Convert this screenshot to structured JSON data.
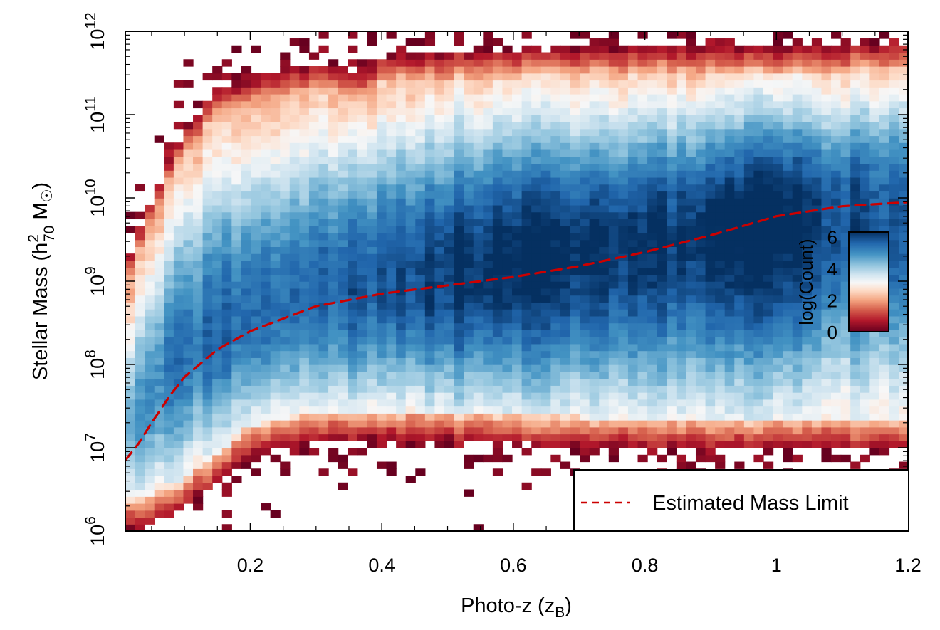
{
  "chart_data": {
    "type": "heatmap",
    "title": "",
    "xlabel": {
      "main": "Photo-z (z",
      "sub": "B",
      "end": ")"
    },
    "ylabel": {
      "pre": "Stellar Mass (h",
      "sup": "2",
      "sub": "70",
      "mid": " M",
      "sun": "☉",
      "end": ")"
    },
    "xlim": [
      0.01,
      1.2
    ],
    "ylim_log10": [
      6,
      12
    ],
    "x_ticks": [
      {
        "value": 0.2,
        "label": "0.2"
      },
      {
        "value": 0.4,
        "label": "0.4"
      },
      {
        "value": 0.6,
        "label": "0.6"
      },
      {
        "value": 0.8,
        "label": "0.8"
      },
      {
        "value": 1.0,
        "label": "1"
      },
      {
        "value": 1.2,
        "label": "1.2"
      }
    ],
    "y_ticks": [
      {
        "exp": 6,
        "base": "10",
        "sup": "6"
      },
      {
        "exp": 7,
        "base": "10",
        "sup": "7"
      },
      {
        "exp": 8,
        "base": "10",
        "sup": "8"
      },
      {
        "exp": 9,
        "base": "10",
        "sup": "9"
      },
      {
        "exp": 10,
        "base": "10",
        "sup": "10"
      },
      {
        "exp": 11,
        "base": "10",
        "sup": "11"
      },
      {
        "exp": 12,
        "base": "10",
        "sup": "12"
      }
    ],
    "colorbar": {
      "label": "log(Count)",
      "range": [
        0,
        6.3
      ],
      "ticks": [
        {
          "value": 0,
          "label": "0"
        },
        {
          "value": 2,
          "label": "2"
        },
        {
          "value": 4,
          "label": "4"
        },
        {
          "value": 6,
          "label": "6"
        }
      ],
      "stops": [
        {
          "v": 0.0,
          "color": "#67001f"
        },
        {
          "v": 0.7,
          "color": "#b2182b"
        },
        {
          "v": 1.4,
          "color": "#d6604d"
        },
        {
          "v": 2.0,
          "color": "#f4a582"
        },
        {
          "v": 2.6,
          "color": "#fddbc7"
        },
        {
          "v": 3.1,
          "color": "#f7f7f7"
        },
        {
          "v": 3.6,
          "color": "#d1e5f0"
        },
        {
          "v": 4.2,
          "color": "#92c5de"
        },
        {
          "v": 4.9,
          "color": "#4393c3"
        },
        {
          "v": 5.6,
          "color": "#2166ac"
        },
        {
          "v": 6.3,
          "color": "#053061"
        }
      ]
    },
    "density_model": {
      "upper_edge": [
        [
          0.01,
          9.2
        ],
        [
          0.05,
          10.0
        ],
        [
          0.1,
          10.8
        ],
        [
          0.15,
          11.3
        ],
        [
          0.25,
          11.55
        ],
        [
          0.33,
          11.6
        ],
        [
          0.36,
          11.45
        ],
        [
          0.4,
          11.7
        ],
        [
          0.5,
          11.75
        ],
        [
          0.7,
          11.8
        ],
        [
          0.9,
          11.8
        ],
        [
          1.2,
          11.85
        ]
      ],
      "lower_edge": [
        [
          0.01,
          6.0
        ],
        [
          0.05,
          6.1
        ],
        [
          0.1,
          6.3
        ],
        [
          0.15,
          6.6
        ],
        [
          0.2,
          6.9
        ],
        [
          0.25,
          7.0
        ],
        [
          0.3,
          7.1
        ],
        [
          0.4,
          7.1
        ],
        [
          0.6,
          7.05
        ],
        [
          0.8,
          7.0
        ],
        [
          1.0,
          7.0
        ],
        [
          1.2,
          7.0
        ]
      ],
      "ridge": [
        [
          0.01,
          7.1
        ],
        [
          0.05,
          7.6
        ],
        [
          0.1,
          8.2
        ],
        [
          0.2,
          8.6
        ],
        [
          0.3,
          8.85
        ],
        [
          0.4,
          9.0
        ],
        [
          0.5,
          9.1
        ],
        [
          0.6,
          9.25
        ],
        [
          0.7,
          9.35
        ],
        [
          0.8,
          9.45
        ],
        [
          0.9,
          9.6
        ],
        [
          1.0,
          9.75
        ],
        [
          1.2,
          9.9
        ]
      ],
      "peak": [
        [
          0.01,
          3.6
        ],
        [
          0.1,
          4.3
        ],
        [
          0.2,
          4.6
        ],
        [
          0.3,
          4.5
        ],
        [
          0.4,
          4.8
        ],
        [
          0.5,
          5.3
        ],
        [
          0.6,
          5.4
        ],
        [
          0.7,
          5.3
        ],
        [
          0.8,
          5.2
        ],
        [
          0.9,
          5.3
        ],
        [
          1.0,
          5.8
        ],
        [
          1.1,
          4.9
        ],
        [
          1.2,
          4.7
        ]
      ]
    },
    "series": [
      {
        "name": "Estimated Mass Limit",
        "style": "dashed",
        "color": "#cc0000",
        "x": [
          0.01,
          0.03,
          0.05,
          0.08,
          0.1,
          0.15,
          0.2,
          0.25,
          0.3,
          0.4,
          0.5,
          0.6,
          0.7,
          0.8,
          0.9,
          1.0,
          1.1,
          1.2
        ],
        "log10_mass": [
          6.85,
          7.05,
          7.3,
          7.65,
          7.85,
          8.18,
          8.4,
          8.55,
          8.7,
          8.85,
          8.95,
          9.05,
          9.18,
          9.35,
          9.55,
          9.78,
          9.9,
          9.95
        ]
      }
    ],
    "legend": {
      "position": "bottom-right",
      "entries": [
        "Estimated Mass Limit"
      ]
    }
  }
}
